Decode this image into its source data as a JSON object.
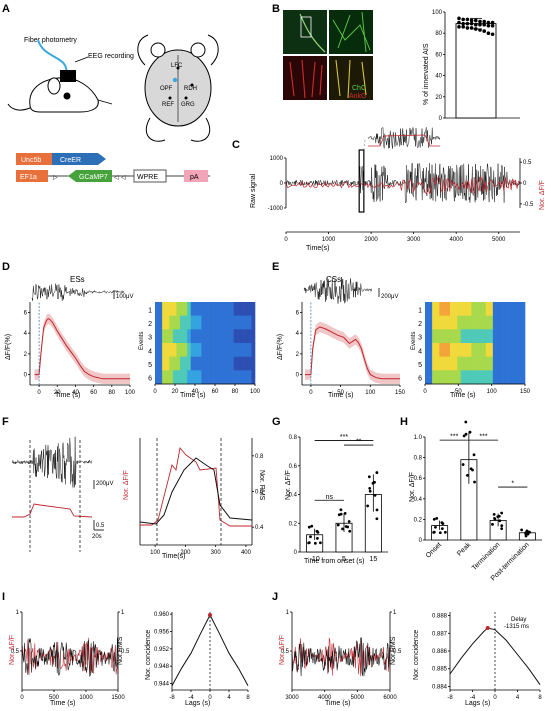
{
  "panels": [
    "A",
    "B",
    "C",
    "D",
    "E",
    "F",
    "G",
    "H",
    "I",
    "J"
  ],
  "A": {
    "fiber_label": "Fiber photometry",
    "eeg_label": "EEG recording",
    "brain_labels": [
      "LFC",
      "OPF",
      "RDH",
      "REF",
      "GRG"
    ],
    "construct1": [
      "Unc5b",
      "CreER"
    ],
    "construct2": [
      "EF1a",
      "GCaMP7",
      "WPRE",
      "pA"
    ]
  },
  "B": {
    "image_labels": {
      "chc": "ChC",
      "ankg": "AnkG"
    },
    "chart_data": {
      "type": "bar",
      "categories": [
        ""
      ],
      "values": [
        89
      ],
      "ylabel": "% of innervated AIS",
      "ylim": [
        0,
        100
      ],
      "yticks": [
        "0",
        "20",
        "40",
        "60",
        "80",
        "100"
      ],
      "points": [
        94,
        93,
        93,
        92,
        92,
        91,
        91,
        90,
        90,
        90,
        89,
        89,
        89,
        88,
        88,
        88,
        87,
        87,
        86,
        86,
        85,
        85,
        84,
        83,
        82,
        80,
        79
      ]
    }
  },
  "C": {
    "chart_data": {
      "type": "line",
      "xlabel": "Time(s)",
      "ylabel_left": "Raw signal",
      "ylabel_right": "Nor. ΔF/F",
      "xticks": [
        "0",
        "1000",
        "2000",
        "3000",
        "4000",
        "5000"
      ],
      "yticks_left": [
        "-1000",
        "0",
        "1000"
      ],
      "yticks_right": [
        "-0.5",
        "0",
        "0.5"
      ],
      "xlim": [
        0,
        5500
      ],
      "seizure_windows": [
        [
          1720,
          1830
        ],
        [
          2000,
          2400
        ],
        [
          2800,
          5200
        ]
      ]
    }
  },
  "D": {
    "title": "ESs",
    "scale": "100μV",
    "chart_data": {
      "type": "line",
      "xlabel": "Time (s)",
      "ylabel": "ΔF/F(%)",
      "xticks": [
        "0",
        "20",
        "40",
        "60",
        "80",
        "100"
      ],
      "yticks": [
        "0",
        "2",
        "4",
        "6"
      ],
      "x": [
        -5,
        0,
        2,
        5,
        8,
        10,
        12,
        15,
        20,
        25,
        30,
        35,
        40,
        45,
        50,
        55,
        60,
        65,
        70,
        80,
        90,
        100
      ],
      "y": [
        0,
        0,
        2,
        4.5,
        5.2,
        5.4,
        5.3,
        5.0,
        4.2,
        3.5,
        2.8,
        2.2,
        1.6,
        0.9,
        0.3,
        0,
        -0.2,
        -0.3,
        -0.4,
        -0.4,
        -0.4,
        -0.4
      ],
      "heatmap_xlabel": "Time (s)",
      "heatmap_ylabel": "Events",
      "heatmap_xticks": [
        "0",
        "20",
        "40",
        "60",
        "80",
        "100"
      ],
      "heatmap_yticks": [
        "1",
        "2",
        "3",
        "4",
        "5",
        "6"
      ]
    }
  },
  "E": {
    "title": "CSs",
    "scale": "200μV",
    "chart_data": {
      "type": "line",
      "xlabel": "Time (s)",
      "ylabel": "ΔF/F(%)",
      "xticks": [
        "0",
        "50",
        "100",
        "150"
      ],
      "yticks": [
        "0",
        "2",
        "4",
        "6"
      ],
      "x": [
        -10,
        0,
        3,
        8,
        15,
        25,
        35,
        45,
        55,
        60,
        65,
        70,
        75,
        80,
        85,
        90,
        95,
        100,
        110,
        120,
        130,
        140,
        150
      ],
      "y": [
        0,
        0,
        2.5,
        4.3,
        4.6,
        4.4,
        4.1,
        3.8,
        3.6,
        3.3,
        3.0,
        3.2,
        3.4,
        3.1,
        2.5,
        1.5,
        0.6,
        0,
        -0.3,
        -0.4,
        -0.4,
        -0.4,
        -0.4
      ],
      "heatmap_xlabel": "Time (s)",
      "heatmap_ylabel": "Events",
      "heatmap_xticks": [
        "0",
        "50",
        "100",
        "150"
      ],
      "heatmap_yticks": [
        "1",
        "2",
        "3",
        "4",
        "5",
        "6"
      ]
    }
  },
  "F": {
    "scales": [
      "200μV",
      "0.5",
      "20s"
    ],
    "chart_data": {
      "type": "line",
      "xlabel": "Time(s)",
      "ylabel_left": "Nor. ΔF/F",
      "ylabel_right": "Nor. RMS",
      "xticks": [
        "100",
        "200",
        "300",
        "400"
      ],
      "yticks_right": [
        "0.4",
        "0.6",
        "0.8"
      ]
    }
  },
  "G": {
    "chart_data": {
      "type": "bar",
      "categories": [
        "-10",
        "5",
        "15"
      ],
      "values": [
        0.12,
        0.2,
        0.4
      ],
      "xlabel": "Time from onset (s)",
      "ylabel": "Nor. ΔF/F",
      "ylim": [
        0,
        0.8
      ],
      "yticks": [
        "0",
        "0.2",
        "0.4",
        "0.6",
        "0.8"
      ],
      "sig": [
        {
          "a": 0,
          "b": 1,
          "label": "ns"
        },
        {
          "a": 1,
          "b": 2,
          "label": "**"
        },
        {
          "a": 0,
          "b": 2,
          "label": "***"
        }
      ]
    }
  },
  "H": {
    "chart_data": {
      "type": "bar",
      "categories": [
        "Onset",
        "Peak",
        "Termination",
        "Post-termination"
      ],
      "values": [
        0.14,
        0.78,
        0.19,
        0.07
      ],
      "ylabel": "Nor. ΔF/F",
      "ylim": [
        0,
        1.0
      ],
      "yticks": [
        "0",
        "0.2",
        "0.4",
        "0.6",
        "0.8",
        "1.0"
      ],
      "sig": [
        {
          "a": 0,
          "b": 1,
          "label": "***"
        },
        {
          "a": 1,
          "b": 2,
          "label": "***"
        },
        {
          "a": 2,
          "b": 3,
          "label": "*"
        }
      ]
    }
  },
  "I": {
    "chart_data": {
      "type": "line",
      "trace_xlabel": "Time (s)",
      "trace_ylabel_left": "Nor. ΔF/F",
      "trace_ylabel_right": "Nor.RMS",
      "trace_xticks": [
        "0",
        "500",
        "1000",
        "1500"
      ],
      "trace_yticks": [
        "0.5",
        "1"
      ],
      "xlabel": "Lags (s)",
      "ylabel": "Nor. concidence",
      "xticks": [
        "-8",
        "-4",
        "0",
        "4",
        "8"
      ],
      "yticks": [
        "0.944",
        "0.948",
        "0.952",
        "0.956",
        "0.960"
      ],
      "x": [
        -8,
        -6,
        -4,
        -2,
        0,
        2,
        4,
        6,
        8
      ],
      "y": [
        0.9435,
        0.9475,
        0.951,
        0.9555,
        0.9598,
        0.9555,
        0.951,
        0.9475,
        0.9435
      ]
    }
  },
  "J": {
    "delay_label": "Delay",
    "delay_value": "-1315 ms",
    "chart_data": {
      "type": "line",
      "trace_xlabel": "Time (s)",
      "trace_ylabel_left": "Nor. ΔF/F",
      "trace_ylabel_right": "Nor.RMS",
      "trace_xticks": [
        "3000",
        "4000",
        "5000",
        "6000"
      ],
      "trace_yticks": [
        "0.5",
        "1"
      ],
      "xlabel": "Lags (s)",
      "ylabel": "Nor. concidence",
      "xticks": [
        "-8",
        "-4",
        "0",
        "4",
        "8"
      ],
      "yticks": [
        "0.884",
        "0.885",
        "0.886",
        "0.887",
        "0.888"
      ],
      "x": [
        -8,
        -6,
        -4,
        -2,
        -1.3,
        0,
        2,
        4,
        6,
        8
      ],
      "y": [
        0.8847,
        0.8856,
        0.8864,
        0.8871,
        0.8873,
        0.8872,
        0.8866,
        0.8858,
        0.885,
        0.8841
      ]
    }
  },
  "colors": {
    "red": "#c0262c",
    "blue": "#2c6fb7",
    "green": "#46a33c",
    "pink": "#f2a4b8",
    "orange": "#e8703a",
    "black": "#111111"
  }
}
